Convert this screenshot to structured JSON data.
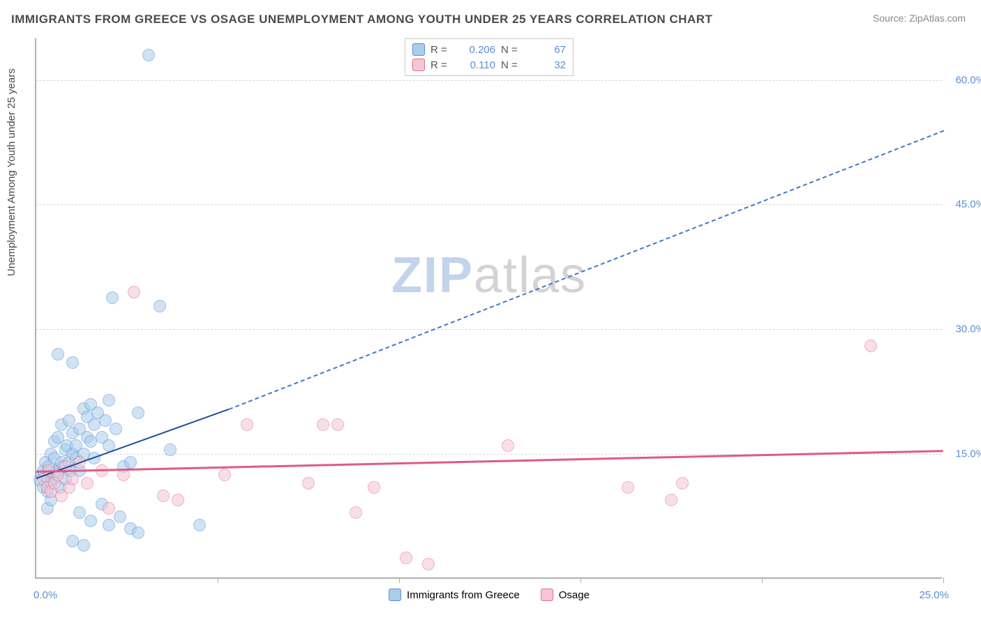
{
  "title": "IMMIGRANTS FROM GREECE VS OSAGE UNEMPLOYMENT AMONG YOUTH UNDER 25 YEARS CORRELATION CHART",
  "source": "Source: ZipAtlas.com",
  "ylabel": "Unemployment Among Youth under 25 years",
  "watermark": {
    "zip": "ZIP",
    "atlas": "atlas"
  },
  "chart": {
    "type": "scatter",
    "xlim": [
      0,
      25
    ],
    "ylim": [
      0,
      65
    ],
    "x_origin_label": "0.0%",
    "x_end_label": "25.0%",
    "y_ticks": [
      15,
      30,
      45,
      60
    ],
    "y_tick_labels": [
      "15.0%",
      "30.0%",
      "45.0%",
      "60.0%"
    ],
    "x_minor_ticks": [
      5,
      10,
      15,
      20,
      25
    ],
    "background_color": "#ffffff",
    "grid_color": "#d8d8d8",
    "axis_color": "#b0b0b0",
    "tick_label_color": "#5b8dd6",
    "title_color": "#4a4a4a",
    "title_fontsize": 17,
    "label_fontsize": 15,
    "point_radius": 9,
    "point_opacity": 0.55
  },
  "series": [
    {
      "name": "Immigrants from Greece",
      "fill": "#a9cdeb",
      "stroke": "#5b8dd6",
      "legend_swatch_fill": "#a9cdeb",
      "legend_swatch_stroke": "#5b8dd6",
      "R": "0.206",
      "N": "67",
      "trend": {
        "x1": 0,
        "y1": 12.2,
        "x2_solid": 5.3,
        "y2_solid": 20.5,
        "x2_dash": 25,
        "y2_dash": 54,
        "solid_color": "#1f4e9c",
        "dash_color": "#4178c8",
        "width": 2.5,
        "dash_pattern": "8,6"
      },
      "points": [
        [
          0.1,
          11.8
        ],
        [
          0.15,
          12.5
        ],
        [
          0.2,
          13.0
        ],
        [
          0.2,
          11.0
        ],
        [
          0.25,
          14.0
        ],
        [
          0.3,
          12.2
        ],
        [
          0.3,
          10.5
        ],
        [
          0.35,
          13.5
        ],
        [
          0.4,
          11.5
        ],
        [
          0.4,
          15.0
        ],
        [
          0.45,
          12.0
        ],
        [
          0.5,
          14.5
        ],
        [
          0.5,
          16.5
        ],
        [
          0.55,
          13.0
        ],
        [
          0.6,
          12.8
        ],
        [
          0.6,
          17.0
        ],
        [
          0.65,
          11.0
        ],
        [
          0.7,
          14.0
        ],
        [
          0.7,
          18.5
        ],
        [
          0.75,
          13.5
        ],
        [
          0.8,
          15.5
        ],
        [
          0.8,
          12.0
        ],
        [
          0.85,
          16.0
        ],
        [
          0.9,
          14.0
        ],
        [
          0.9,
          19.0
        ],
        [
          0.95,
          13.0
        ],
        [
          1.0,
          15.0
        ],
        [
          1.0,
          17.5
        ],
        [
          1.1,
          14.5
        ],
        [
          1.1,
          16.0
        ],
        [
          1.2,
          13.0
        ],
        [
          1.2,
          18.0
        ],
        [
          1.3,
          20.5
        ],
        [
          1.3,
          15.0
        ],
        [
          1.4,
          17.0
        ],
        [
          1.4,
          19.5
        ],
        [
          1.5,
          16.5
        ],
        [
          1.5,
          21.0
        ],
        [
          1.6,
          14.5
        ],
        [
          1.6,
          18.5
        ],
        [
          1.7,
          20.0
        ],
        [
          1.8,
          17.0
        ],
        [
          1.9,
          19.0
        ],
        [
          2.0,
          16.0
        ],
        [
          2.0,
          21.5
        ],
        [
          2.1,
          33.8
        ],
        [
          2.2,
          18.0
        ],
        [
          2.4,
          13.5
        ],
        [
          2.6,
          14.0
        ],
        [
          2.8,
          20.0
        ],
        [
          3.1,
          63.0
        ],
        [
          3.4,
          32.8
        ],
        [
          3.7,
          15.5
        ],
        [
          1.2,
          8.0
        ],
        [
          1.5,
          7.0
        ],
        [
          1.8,
          9.0
        ],
        [
          2.0,
          6.5
        ],
        [
          2.3,
          7.5
        ],
        [
          2.6,
          6.0
        ],
        [
          2.8,
          5.5
        ],
        [
          1.0,
          26.0
        ],
        [
          0.6,
          27.0
        ],
        [
          1.0,
          4.5
        ],
        [
          1.3,
          4.0
        ],
        [
          4.5,
          6.5
        ],
        [
          0.3,
          8.5
        ],
        [
          0.4,
          9.5
        ]
      ]
    },
    {
      "name": "Osage",
      "fill": "#f4c6d4",
      "stroke": "#e0728f",
      "legend_swatch_fill": "#f4c6d4",
      "legend_swatch_stroke": "#e0728f",
      "R": "0.110",
      "N": "32",
      "trend": {
        "x1": 0,
        "y1": 13.0,
        "x2_solid": 25,
        "y2_solid": 15.5,
        "x2_dash": 25,
        "y2_dash": 15.5,
        "solid_color": "#e05a87",
        "dash_color": "#e05a87",
        "width": 3,
        "dash_pattern": "none"
      },
      "points": [
        [
          0.2,
          12.0
        ],
        [
          0.3,
          11.0
        ],
        [
          0.35,
          13.0
        ],
        [
          0.4,
          10.5
        ],
        [
          0.5,
          11.5
        ],
        [
          0.6,
          12.5
        ],
        [
          0.7,
          10.0
        ],
        [
          0.8,
          13.5
        ],
        [
          0.9,
          11.0
        ],
        [
          1.0,
          12.0
        ],
        [
          1.2,
          14.0
        ],
        [
          1.4,
          11.5
        ],
        [
          1.8,
          13.0
        ],
        [
          2.0,
          8.5
        ],
        [
          2.4,
          12.5
        ],
        [
          2.7,
          34.5
        ],
        [
          3.5,
          10.0
        ],
        [
          3.9,
          9.5
        ],
        [
          5.2,
          12.5
        ],
        [
          5.8,
          18.5
        ],
        [
          7.5,
          11.5
        ],
        [
          7.9,
          18.5
        ],
        [
          8.3,
          18.5
        ],
        [
          8.8,
          8.0
        ],
        [
          9.3,
          11.0
        ],
        [
          10.2,
          2.5
        ],
        [
          10.8,
          1.8
        ],
        [
          13.0,
          16.0
        ],
        [
          16.3,
          11.0
        ],
        [
          17.5,
          9.5
        ],
        [
          17.8,
          11.5
        ],
        [
          23.0,
          28.0
        ]
      ]
    }
  ],
  "legend_top_labels": {
    "R": "R =",
    "N": "N ="
  },
  "legend_bottom": [
    {
      "label": "Immigrants from Greece",
      "series": 0
    },
    {
      "label": "Osage",
      "series": 1
    }
  ]
}
